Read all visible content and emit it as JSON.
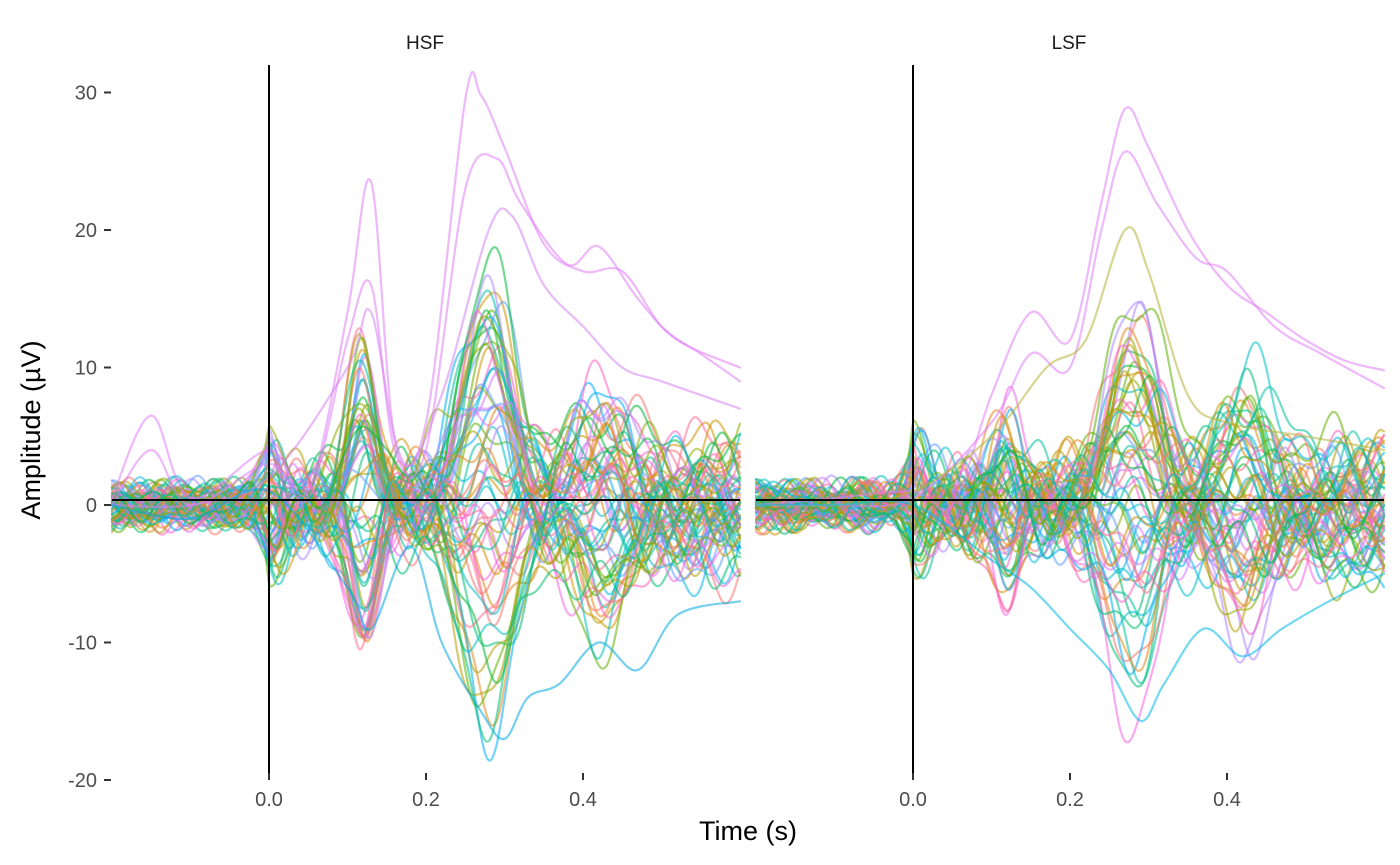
{
  "chart_data": {
    "type": "line",
    "xlabel": "Time (s)",
    "ylabel": "Amplitude (µV)",
    "xlim": [
      -0.2,
      0.6
    ],
    "ylim": [
      -20,
      32
    ],
    "xticks": [
      0.0,
      0.2,
      0.4
    ],
    "xtick_labels": [
      "0.0",
      "0.2",
      "0.4"
    ],
    "yticks": [
      -20,
      -10,
      0,
      10,
      20,
      30
    ],
    "ytick_labels": [
      "-20",
      "-10",
      "0",
      "10",
      "20",
      "30"
    ],
    "grid": false,
    "legend": "none",
    "reference_lines": {
      "x": 0,
      "y": 0
    },
    "n_channels": 64,
    "panels": [
      {
        "label": "HSF",
        "highlight_series": [
          {
            "color": "#e07df7",
            "points": [
              [
                -0.2,
                0.5
              ],
              [
                -0.15,
                6.5
              ],
              [
                -0.1,
                0.5
              ],
              [
                0.0,
                4.0
              ],
              [
                0.05,
                1.0
              ],
              [
                0.1,
                14.0
              ],
              [
                0.13,
                23.5
              ],
              [
                0.16,
                5.0
              ],
              [
                0.2,
                6.0
              ],
              [
                0.25,
                29.5
              ],
              [
                0.27,
                29.8
              ],
              [
                0.3,
                26.0
              ],
              [
                0.35,
                19.0
              ],
              [
                0.4,
                17.0
              ],
              [
                0.45,
                17.0
              ],
              [
                0.5,
                13.0
              ],
              [
                0.55,
                11.0
              ],
              [
                0.6,
                9.0
              ]
            ]
          },
          {
            "color": "#e07df7",
            "points": [
              [
                -0.2,
                0.0
              ],
              [
                -0.15,
                4.0
              ],
              [
                -0.1,
                0.0
              ],
              [
                0.0,
                3.0
              ],
              [
                0.05,
                0.5
              ],
              [
                0.1,
                12.0
              ],
              [
                0.13,
                16.0
              ],
              [
                0.16,
                4.0
              ],
              [
                0.2,
                4.0
              ],
              [
                0.25,
                23.0
              ],
              [
                0.29,
                25.2
              ],
              [
                0.32,
                22.0
              ],
              [
                0.38,
                17.5
              ],
              [
                0.42,
                18.8
              ],
              [
                0.47,
                15.0
              ],
              [
                0.52,
                12.0
              ],
              [
                0.6,
                10.0
              ]
            ]
          },
          {
            "color": "#d582f0",
            "points": [
              [
                -0.2,
                0.0
              ],
              [
                -0.1,
                0.0
              ],
              [
                0.0,
                2.0
              ],
              [
                0.1,
                10.0
              ],
              [
                0.13,
                14.0
              ],
              [
                0.17,
                3.0
              ],
              [
                0.22,
                8.0
              ],
              [
                0.28,
                20.0
              ],
              [
                0.31,
                21.0
              ],
              [
                0.35,
                16.0
              ],
              [
                0.4,
                13.0
              ],
              [
                0.45,
                10.0
              ],
              [
                0.5,
                9.0
              ],
              [
                0.6,
                7.0
              ]
            ]
          },
          {
            "color": "#00a9e0",
            "points": [
              [
                -0.2,
                0.0
              ],
              [
                -0.1,
                -1.0
              ],
              [
                0.0,
                1.0
              ],
              [
                0.1,
                -6.0
              ],
              [
                0.13,
                -9.0
              ],
              [
                0.18,
                -3.0
              ],
              [
                0.22,
                -10.0
              ],
              [
                0.27,
                -15.0
              ],
              [
                0.3,
                -17.0
              ],
              [
                0.33,
                -14.0
              ],
              [
                0.37,
                -13.0
              ],
              [
                0.42,
                -10.0
              ],
              [
                0.47,
                -12.0
              ],
              [
                0.52,
                -8.0
              ],
              [
                0.6,
                -7.0
              ]
            ]
          }
        ]
      },
      {
        "label": "LSF",
        "highlight_series": [
          {
            "color": "#e07df7",
            "points": [
              [
                -0.2,
                0.0
              ],
              [
                -0.1,
                0.5
              ],
              [
                0.0,
                1.0
              ],
              [
                0.05,
                0.0
              ],
              [
                0.1,
                8.0
              ],
              [
                0.15,
                14.0
              ],
              [
                0.2,
                12.0
              ],
              [
                0.24,
                22.0
              ],
              [
                0.27,
                28.8
              ],
              [
                0.3,
                26.0
              ],
              [
                0.35,
                20.0
              ],
              [
                0.4,
                16.0
              ],
              [
                0.45,
                14.0
              ],
              [
                0.5,
                12.0
              ],
              [
                0.55,
                10.5
              ],
              [
                0.6,
                9.8
              ]
            ]
          },
          {
            "color": "#e07df7",
            "points": [
              [
                -0.2,
                0.0
              ],
              [
                -0.1,
                0.0
              ],
              [
                0.0,
                0.5
              ],
              [
                0.1,
                6.0
              ],
              [
                0.15,
                11.0
              ],
              [
                0.2,
                10.0
              ],
              [
                0.24,
                20.0
              ],
              [
                0.27,
                25.7
              ],
              [
                0.31,
                22.0
              ],
              [
                0.36,
                18.0
              ],
              [
                0.4,
                17.0
              ],
              [
                0.46,
                13.0
              ],
              [
                0.52,
                11.0
              ],
              [
                0.6,
                8.5
              ]
            ]
          },
          {
            "color": "#b6b23b",
            "points": [
              [
                -0.2,
                0.0
              ],
              [
                -0.1,
                0.0
              ],
              [
                0.0,
                1.0
              ],
              [
                0.1,
                5.0
              ],
              [
                0.17,
                10.0
              ],
              [
                0.22,
                12.0
              ],
              [
                0.27,
                20.0
              ],
              [
                0.3,
                17.0
              ],
              [
                0.35,
                8.0
              ],
              [
                0.4,
                6.0
              ],
              [
                0.5,
                5.0
              ],
              [
                0.6,
                4.0
              ]
            ]
          },
          {
            "color": "#00b8e5",
            "points": [
              [
                -0.2,
                0.0
              ],
              [
                -0.1,
                0.0
              ],
              [
                0.0,
                0.0
              ],
              [
                0.1,
                -4.0
              ],
              [
                0.15,
                -6.0
              ],
              [
                0.2,
                -9.0
              ],
              [
                0.25,
                -12.0
              ],
              [
                0.29,
                -15.7
              ],
              [
                0.32,
                -13.0
              ],
              [
                0.37,
                -9.0
              ],
              [
                0.42,
                -11.0
              ],
              [
                0.47,
                -9.0
              ],
              [
                0.53,
                -7.0
              ],
              [
                0.6,
                -5.0
              ]
            ]
          }
        ]
      }
    ]
  },
  "palette": [
    "#f8766d",
    "#e7861b",
    "#d39200",
    "#b79f00",
    "#93aa00",
    "#5eb300",
    "#00ba38",
    "#00bf74",
    "#00c19f",
    "#00bfc4",
    "#00b9e3",
    "#00adfa",
    "#619cff",
    "#ae87ff",
    "#db72fb",
    "#f564e3",
    "#ff61c3",
    "#ff6c91"
  ]
}
